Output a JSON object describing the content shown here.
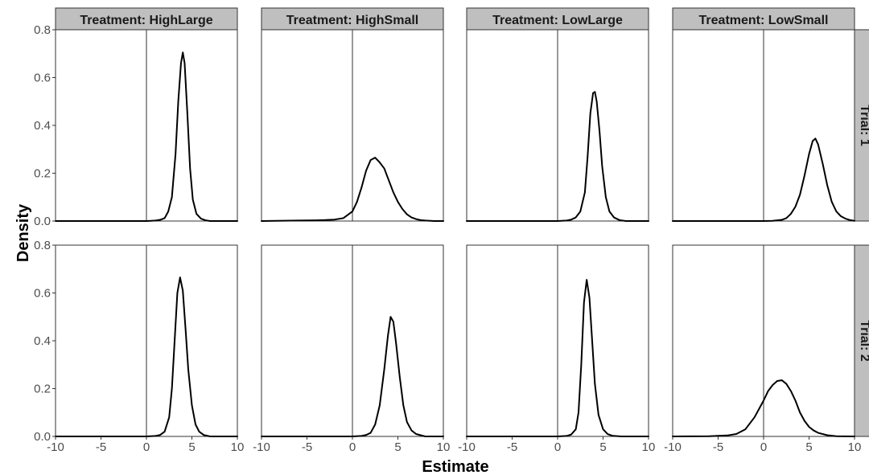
{
  "chart_data": {
    "type": "line",
    "chart_kind": "faceted density plot",
    "xlabel": "Estimate",
    "ylabel": "Density",
    "xlim": [
      -10,
      10
    ],
    "ylim": [
      0,
      0.8
    ],
    "x_ticks": [
      -10,
      -5,
      0,
      5,
      10
    ],
    "x_tick_labels": [
      "-10",
      "-5",
      "0",
      "5",
      "10"
    ],
    "y_ticks": [
      0.0,
      0.2,
      0.4,
      0.6,
      0.8
    ],
    "y_tick_labels": [
      "0.0",
      "0.2",
      "0.4",
      "0.6",
      "0.8"
    ],
    "reference_line_x": 0,
    "grid": false,
    "line_color": "#000000",
    "strip_fill": "#bfbfbf",
    "column_strips": [
      "Treatment: HighLarge",
      "Treatment: HighSmall",
      "Treatment: LowLarge",
      "Treatment: LowSmall"
    ],
    "row_strips": [
      "Trial: 1",
      "Trial: 2"
    ],
    "panels": [
      {
        "row": 0,
        "col": 0,
        "x": [
          -10,
          0,
          0.5,
          1,
          1.5,
          2,
          2.4,
          2.8,
          3.2,
          3.5,
          3.8,
          4,
          4.2,
          4.5,
          4.8,
          5.1,
          5.5,
          6,
          6.5,
          7,
          10
        ],
        "y": [
          0,
          0,
          0.001,
          0.002,
          0.005,
          0.012,
          0.04,
          0.1,
          0.28,
          0.5,
          0.66,
          0.705,
          0.66,
          0.45,
          0.22,
          0.09,
          0.03,
          0.01,
          0.003,
          0,
          0
        ]
      },
      {
        "row": 0,
        "col": 1,
        "x": [
          -10,
          -6,
          -4,
          -3,
          -2,
          -1,
          0,
          0.5,
          1,
          1.5,
          2,
          2.5,
          3,
          3.5,
          4,
          4.5,
          5,
          5.5,
          6,
          6.5,
          7,
          7.5,
          8,
          9,
          10
        ],
        "y": [
          0,
          0.002,
          0.003,
          0.004,
          0.006,
          0.012,
          0.04,
          0.08,
          0.14,
          0.21,
          0.255,
          0.265,
          0.245,
          0.22,
          0.17,
          0.12,
          0.08,
          0.05,
          0.028,
          0.015,
          0.008,
          0.004,
          0.002,
          0,
          0
        ]
      },
      {
        "row": 0,
        "col": 2,
        "x": [
          -10,
          0,
          1,
          1.5,
          2,
          2.5,
          3,
          3.3,
          3.6,
          3.9,
          4.1,
          4.3,
          4.6,
          4.9,
          5.3,
          5.7,
          6.2,
          6.8,
          7.5,
          10
        ],
        "y": [
          0,
          0,
          0.002,
          0.006,
          0.015,
          0.04,
          0.12,
          0.27,
          0.45,
          0.535,
          0.54,
          0.5,
          0.38,
          0.23,
          0.1,
          0.04,
          0.015,
          0.004,
          0,
          0
        ]
      },
      {
        "row": 0,
        "col": 3,
        "x": [
          -10,
          0,
          1,
          2,
          2.5,
          3,
          3.5,
          4,
          4.5,
          5,
          5.4,
          5.7,
          6,
          6.5,
          7,
          7.5,
          8,
          8.5,
          9,
          9.5,
          10
        ],
        "y": [
          0,
          0,
          0.001,
          0.005,
          0.012,
          0.03,
          0.06,
          0.11,
          0.19,
          0.28,
          0.335,
          0.345,
          0.32,
          0.24,
          0.15,
          0.08,
          0.04,
          0.02,
          0.01,
          0.004,
          0.001
        ]
      },
      {
        "row": 1,
        "col": 0,
        "x": [
          -10,
          0,
          1,
          1.5,
          2,
          2.5,
          2.8,
          3.1,
          3.4,
          3.7,
          4,
          4.3,
          4.6,
          5,
          5.4,
          5.8,
          6.3,
          7,
          10
        ],
        "y": [
          0,
          0,
          0.002,
          0.006,
          0.02,
          0.08,
          0.2,
          0.4,
          0.6,
          0.665,
          0.61,
          0.45,
          0.28,
          0.13,
          0.05,
          0.02,
          0.006,
          0,
          0
        ]
      },
      {
        "row": 1,
        "col": 1,
        "x": [
          -10,
          0,
          1,
          1.5,
          2,
          2.5,
          3,
          3.5,
          3.9,
          4.2,
          4.5,
          4.8,
          5.2,
          5.6,
          6,
          6.5,
          7,
          8,
          10
        ],
        "y": [
          0,
          0,
          0.002,
          0.006,
          0.015,
          0.05,
          0.13,
          0.28,
          0.42,
          0.5,
          0.48,
          0.39,
          0.25,
          0.13,
          0.06,
          0.025,
          0.01,
          0,
          0
        ]
      },
      {
        "row": 1,
        "col": 2,
        "x": [
          -10,
          0,
          1,
          1.5,
          2,
          2.3,
          2.6,
          2.9,
          3.2,
          3.5,
          3.8,
          4.1,
          4.5,
          5,
          5.5,
          6,
          7,
          10
        ],
        "y": [
          0,
          0,
          0.002,
          0.008,
          0.03,
          0.1,
          0.3,
          0.56,
          0.655,
          0.58,
          0.4,
          0.22,
          0.09,
          0.03,
          0.01,
          0.003,
          0,
          0
        ]
      },
      {
        "row": 1,
        "col": 3,
        "x": [
          -10,
          -6,
          -4,
          -3,
          -2,
          -1,
          0,
          0.5,
          1,
          1.5,
          2,
          2.5,
          3,
          3.5,
          4,
          4.5,
          5,
          5.5,
          6,
          7,
          8,
          10
        ],
        "y": [
          0,
          0.001,
          0.004,
          0.01,
          0.03,
          0.08,
          0.15,
          0.19,
          0.215,
          0.232,
          0.235,
          0.22,
          0.19,
          0.15,
          0.1,
          0.065,
          0.04,
          0.025,
          0.015,
          0.005,
          0.001,
          0
        ]
      }
    ]
  }
}
